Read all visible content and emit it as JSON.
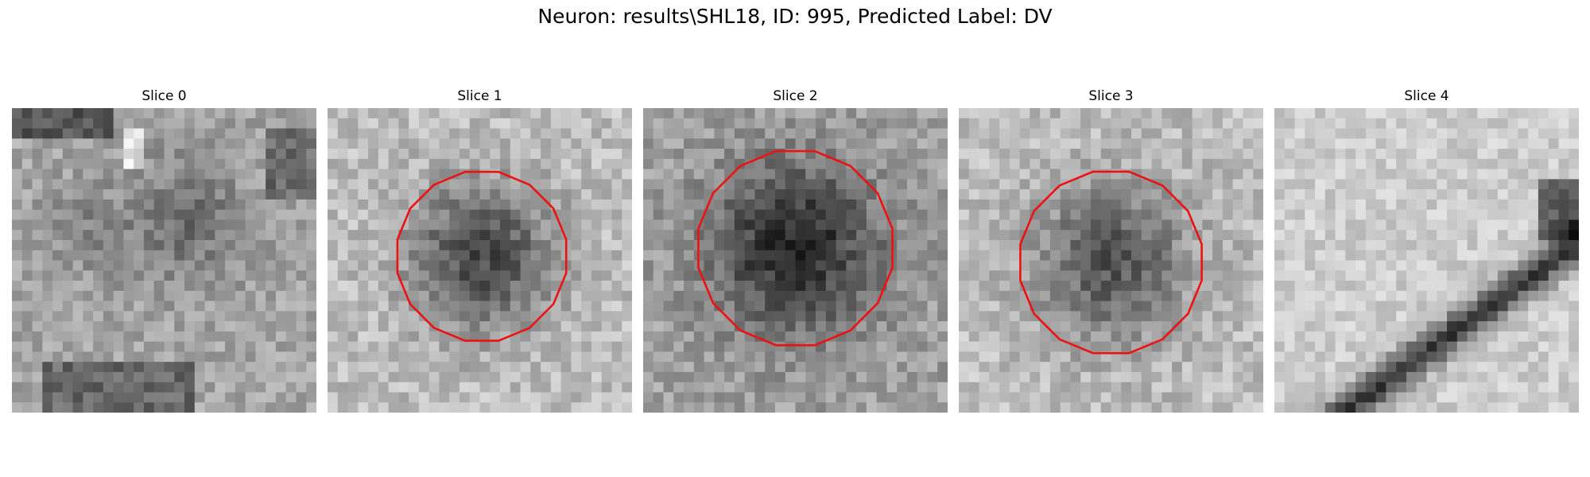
{
  "figure": {
    "title": "Neuron: results\\SHL18, ID: 995, Predicted Label: DV"
  },
  "contour_color": "#ee1111",
  "slices": [
    {
      "title": "Slice 0",
      "pattern": "mottled-grey",
      "has_contour": false
    },
    {
      "title": "Slice 1",
      "pattern": "dark-blob",
      "has_contour": true
    },
    {
      "title": "Slice 2",
      "pattern": "dark-blob",
      "has_contour": true
    },
    {
      "title": "Slice 3",
      "pattern": "dark-blob",
      "has_contour": true
    },
    {
      "title": "Slice 4",
      "pattern": "diagonal-streak",
      "has_contour": false
    }
  ]
}
